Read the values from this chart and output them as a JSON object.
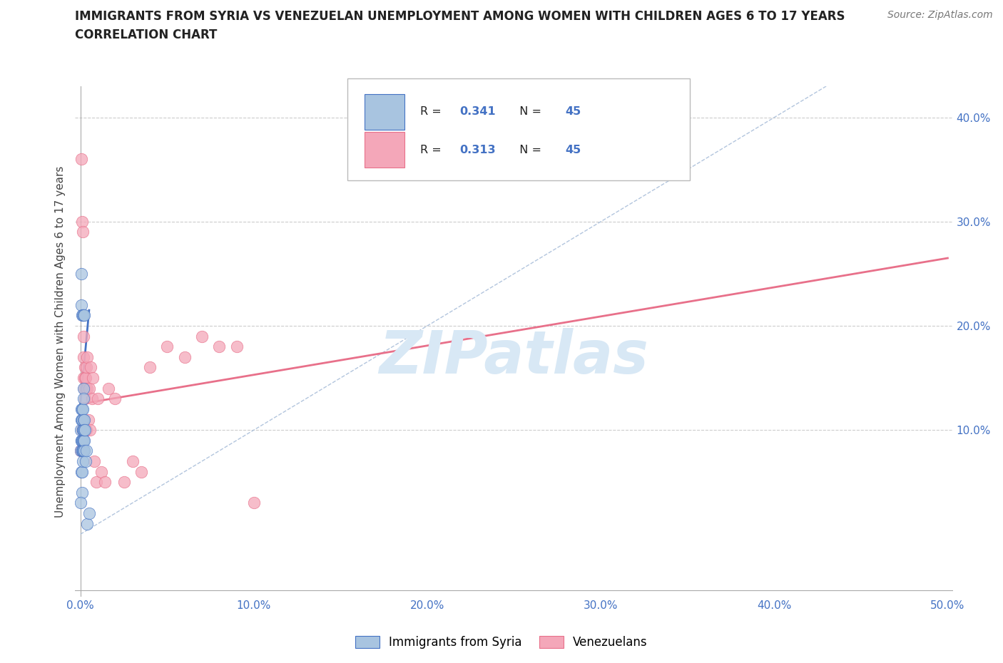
{
  "title_line1": "IMMIGRANTS FROM SYRIA VS VENEZUELAN UNEMPLOYMENT AMONG WOMEN WITH CHILDREN AGES 6 TO 17 YEARS",
  "title_line2": "CORRELATION CHART",
  "source": "Source: ZipAtlas.com",
  "ylabel": "Unemployment Among Women with Children Ages 6 to 17 years",
  "xlim": [
    -0.003,
    0.503
  ],
  "ylim": [
    -0.06,
    0.43
  ],
  "xticks": [
    0.0,
    0.1,
    0.2,
    0.3,
    0.4,
    0.5
  ],
  "yticks": [
    0.1,
    0.2,
    0.3,
    0.4
  ],
  "xtick_labels": [
    "0.0%",
    "10.0%",
    "20.0%",
    "30.0%",
    "40.0%",
    "50.0%"
  ],
  "ytick_labels": [
    "10.0%",
    "20.0%",
    "30.0%",
    "40.0%"
  ],
  "color_syria": "#a8c4e0",
  "color_venezuela": "#f4a7b9",
  "color_blue_text": "#4472c4",
  "color_pink_line": "#e8708a",
  "color_blue_line": "#4472c4",
  "color_diag_line": "#aabfda",
  "R_syria": "0.341",
  "N_syria": "45",
  "R_venezuela": "0.313",
  "N_venezuela": "45",
  "syria_x": [
    0.0002,
    0.0003,
    0.0004,
    0.0005,
    0.0005,
    0.0006,
    0.0006,
    0.0007,
    0.0007,
    0.0008,
    0.0008,
    0.0009,
    0.0009,
    0.001,
    0.001,
    0.001,
    0.0011,
    0.0011,
    0.0012,
    0.0012,
    0.0013,
    0.0013,
    0.0014,
    0.0014,
    0.0015,
    0.0015,
    0.0016,
    0.0016,
    0.0017,
    0.0017,
    0.0018,
    0.0018,
    0.0019,
    0.0019,
    0.002,
    0.002,
    0.0021,
    0.0021,
    0.0022,
    0.0025,
    0.003,
    0.0035,
    0.004,
    0.005,
    0.0002
  ],
  "syria_y": [
    0.08,
    0.1,
    0.12,
    0.09,
    0.25,
    0.06,
    0.22,
    0.09,
    0.11,
    0.04,
    0.21,
    0.08,
    0.11,
    0.06,
    0.09,
    0.12,
    0.08,
    0.11,
    0.07,
    0.1,
    0.09,
    0.12,
    0.08,
    0.1,
    0.08,
    0.21,
    0.09,
    0.11,
    0.08,
    0.14,
    0.09,
    0.21,
    0.1,
    0.13,
    0.09,
    0.11,
    0.08,
    0.1,
    0.21,
    0.1,
    0.07,
    0.08,
    0.01,
    0.02,
    0.03
  ],
  "venezuela_x": [
    0.0003,
    0.0005,
    0.0008,
    0.001,
    0.0012,
    0.0013,
    0.0015,
    0.0016,
    0.0017,
    0.0018,
    0.0019,
    0.002,
    0.0022,
    0.0024,
    0.0025,
    0.0027,
    0.0028,
    0.003,
    0.0033,
    0.0035,
    0.0038,
    0.004,
    0.0045,
    0.005,
    0.0055,
    0.006,
    0.0065,
    0.007,
    0.008,
    0.009,
    0.01,
    0.012,
    0.014,
    0.016,
    0.02,
    0.025,
    0.03,
    0.035,
    0.04,
    0.05,
    0.06,
    0.07,
    0.08,
    0.09,
    0.1
  ],
  "venezuela_y": [
    0.08,
    0.36,
    0.1,
    0.3,
    0.11,
    0.29,
    0.1,
    0.19,
    0.15,
    0.11,
    0.17,
    0.14,
    0.1,
    0.16,
    0.15,
    0.13,
    0.14,
    0.15,
    0.1,
    0.16,
    0.14,
    0.17,
    0.11,
    0.14,
    0.1,
    0.16,
    0.13,
    0.15,
    0.07,
    0.05,
    0.13,
    0.06,
    0.05,
    0.14,
    0.13,
    0.05,
    0.07,
    0.06,
    0.16,
    0.18,
    0.17,
    0.19,
    0.18,
    0.18,
    0.03
  ],
  "syria_line_x": [
    0.0,
    0.005
  ],
  "syria_line_y": [
    0.125,
    0.215
  ],
  "venezuela_line_x": [
    0.0,
    0.5
  ],
  "venezuela_line_y": [
    0.125,
    0.265
  ],
  "diag_line_x": [
    0.0,
    0.43
  ],
  "diag_line_y": [
    0.0,
    0.43
  ],
  "watermark": "ZIPatlas",
  "watermark_color": "#d8e8f5"
}
